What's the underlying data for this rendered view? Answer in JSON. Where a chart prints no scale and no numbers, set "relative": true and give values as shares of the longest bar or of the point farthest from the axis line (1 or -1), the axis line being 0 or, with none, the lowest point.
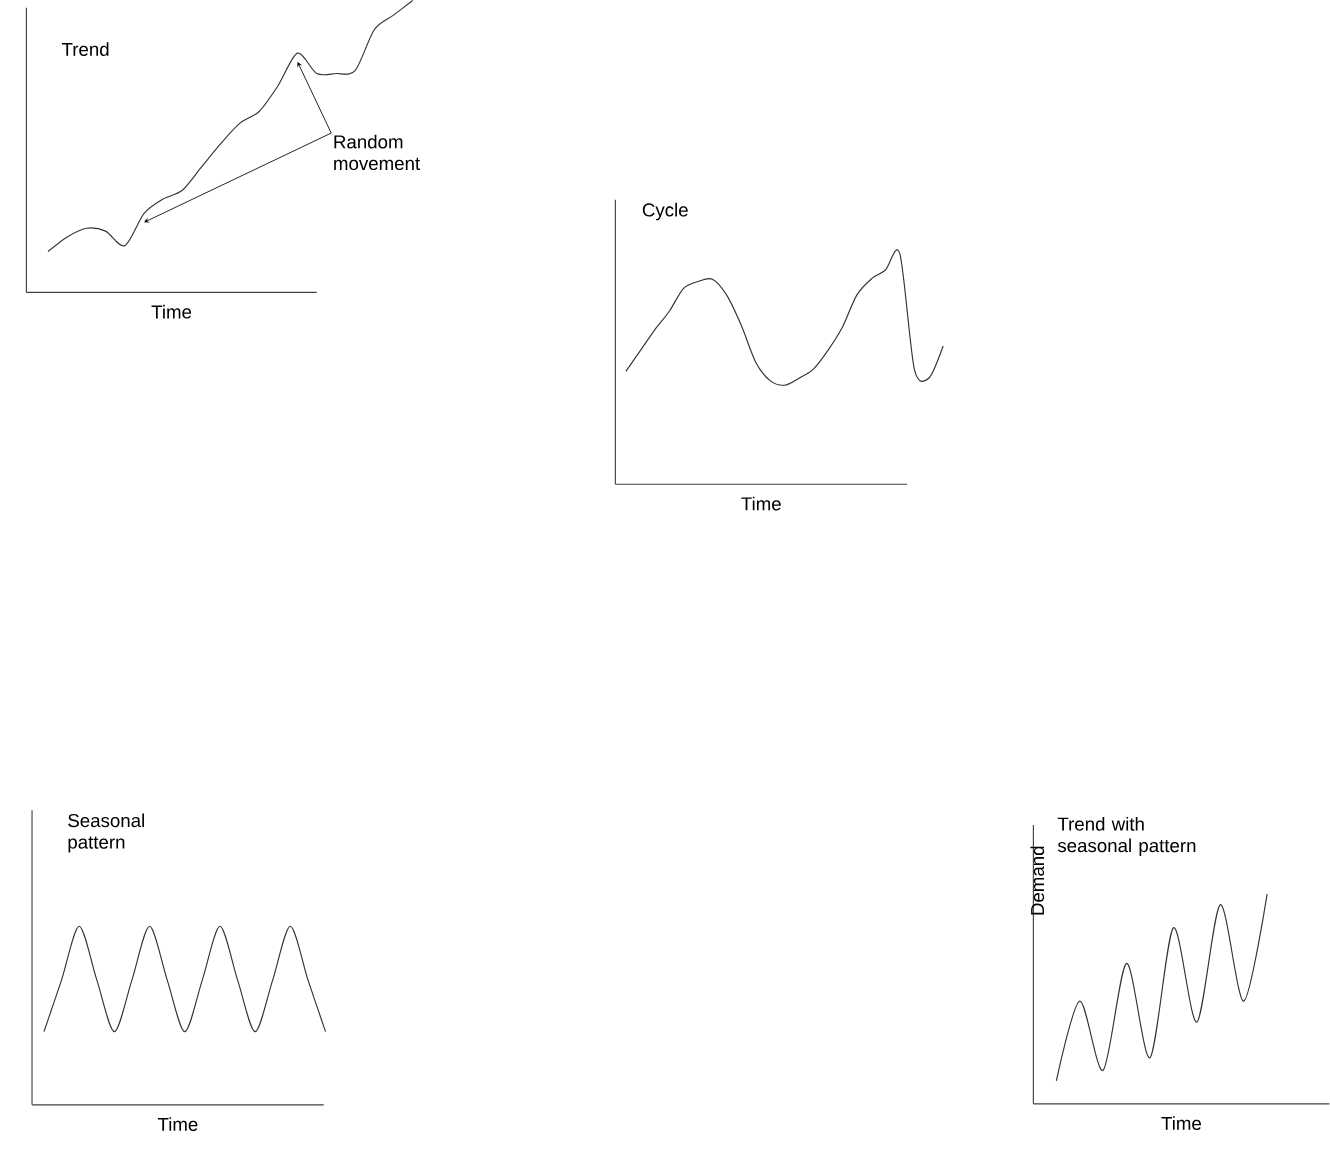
{
  "chart_data": [
    {
      "type": "line",
      "title": "Trend",
      "xlabel": "Time",
      "relative": true,
      "color": "#333333",
      "annotations": [
        "Random movement"
      ],
      "categories": [
        null,
        null,
        null,
        null,
        null,
        null,
        null,
        null,
        null,
        null,
        null,
        null,
        null,
        null,
        null,
        null,
        null,
        null,
        null,
        null
      ],
      "values": [
        0.14,
        0.19,
        0.22,
        0.21,
        0.16,
        0.27,
        0.32,
        0.35,
        0.43,
        0.51,
        0.58,
        0.62,
        0.71,
        0.82,
        0.75,
        0.75,
        0.76,
        0.9,
        0.95,
        1
      ]
    },
    {
      "type": "line",
      "title": "Cycle",
      "xlabel": "Time",
      "relative": true,
      "color": "#333333",
      "categories": [
        null,
        null,
        null,
        null,
        null,
        null,
        null,
        null,
        null,
        null,
        null,
        null,
        null,
        null,
        null,
        null,
        null,
        null,
        null,
        null,
        null,
        null,
        null
      ],
      "values": [
        0.49,
        0.58,
        0.67,
        0.75,
        0.85,
        0.88,
        0.89,
        0.82,
        0.69,
        0.53,
        0.45,
        0.43,
        0.46,
        0.5,
        0.58,
        0.68,
        0.82,
        0.89,
        0.93,
        1,
        0.5,
        0.46,
        0.6
      ]
    },
    {
      "type": "line",
      "title": "Seasonal pattern",
      "xlabel": "Time",
      "relative": true,
      "color": "#333333",
      "categories": [
        null,
        null,
        null,
        null,
        null,
        null,
        null,
        null,
        null,
        null,
        null,
        null,
        null,
        null,
        null,
        null,
        null
      ],
      "values": [
        0.41,
        0.7,
        1,
        0.7,
        0.41,
        0.7,
        1,
        0.7,
        0.41,
        0.7,
        1,
        0.7,
        0.41,
        0.7,
        1,
        0.7,
        0.41
      ]
    },
    {
      "type": "line",
      "title": "Trend with seasonal pattern",
      "xlabel": "Time",
      "ylabel": "Demand",
      "relative": true,
      "color": "#333333",
      "categories": [
        null,
        null,
        null,
        null,
        null,
        null,
        null,
        null,
        null,
        null
      ],
      "values": [
        0.11,
        0.49,
        0.16,
        0.67,
        0.22,
        0.84,
        0.39,
        0.95,
        0.49,
        1
      ]
    }
  ]
}
